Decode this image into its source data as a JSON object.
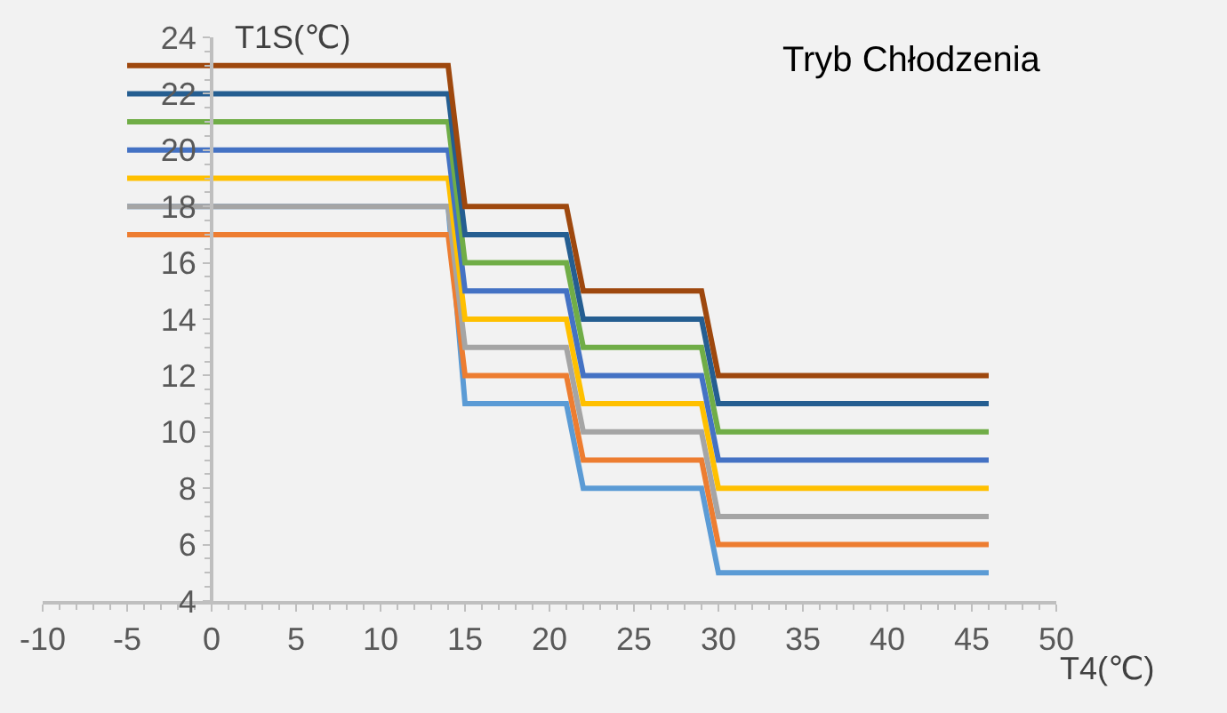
{
  "chart_data": {
    "type": "line",
    "title": "Tryb Chłodzenia",
    "xlabel": "T4(℃)",
    "ylabel": "T1S(℃)",
    "x": [
      -5,
      14,
      15,
      21,
      22,
      29,
      30,
      46
    ],
    "series": [
      {
        "color": "#5b9bd5",
        "values": [
          18,
          18,
          11,
          11,
          8,
          8,
          5,
          5
        ]
      },
      {
        "color": "#ed7d31",
        "values": [
          17,
          17,
          12,
          12,
          9,
          9,
          6,
          6
        ]
      },
      {
        "color": "#a5a5a5",
        "values": [
          18,
          18,
          13,
          13,
          10,
          10,
          7,
          7
        ]
      },
      {
        "color": "#ffc000",
        "values": [
          19,
          19,
          14,
          14,
          11,
          11,
          8,
          8
        ]
      },
      {
        "color": "#4472c4",
        "values": [
          20,
          20,
          15,
          15,
          12,
          12,
          9,
          9
        ]
      },
      {
        "color": "#70ad47",
        "values": [
          21,
          21,
          16,
          16,
          13,
          13,
          10,
          10
        ]
      },
      {
        "color": "#255e91",
        "values": [
          22,
          22,
          17,
          17,
          14,
          14,
          11,
          11
        ]
      },
      {
        "color": "#9e480e",
        "values": [
          23,
          23,
          18,
          18,
          15,
          15,
          12,
          12
        ]
      }
    ],
    "xlim": [
      -10,
      50
    ],
    "xticks": [
      -10,
      -5,
      0,
      5,
      10,
      15,
      20,
      25,
      30,
      35,
      40,
      45,
      50
    ],
    "ylim": [
      4,
      24
    ],
    "yticks": [
      4,
      6,
      8,
      10,
      12,
      14,
      16,
      18,
      20,
      22,
      24
    ],
    "grid": false,
    "marker": "none",
    "line_style": "solid"
  }
}
